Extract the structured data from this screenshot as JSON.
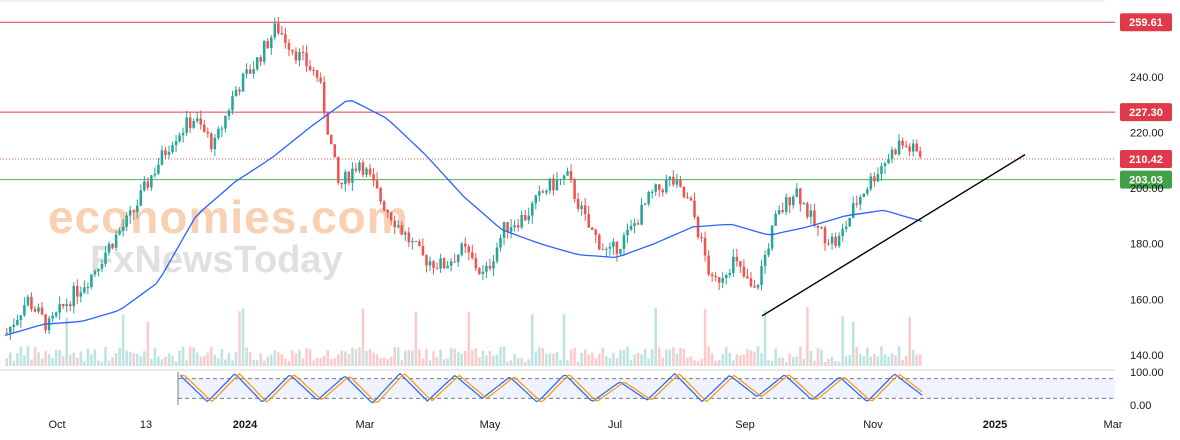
{
  "colors": {
    "up": "#26a69a",
    "down": "#ef5350",
    "ma": "#2962ff",
    "resistance": "#e03a4a",
    "support": "#4caf50",
    "current_dotted": "#ef5350",
    "trendline": "#000000",
    "stoch_k": "#2962ff",
    "stoch_d": "#ff9800"
  },
  "watermark": {
    "line1": "economies.com",
    "line2": "FxNewsToday"
  },
  "chart_data": {
    "type": "candlestick",
    "price_axis": {
      "range": [
        136,
        264
      ],
      "ticks": [
        140,
        160,
        180,
        200,
        220,
        240
      ]
    },
    "time_axis": {
      "labels": [
        {
          "text": "Oct",
          "bold": false
        },
        {
          "text": "13",
          "bold": false
        },
        {
          "text": "2024",
          "bold": true
        },
        {
          "text": "Mar",
          "bold": false
        },
        {
          "text": "May",
          "bold": false
        },
        {
          "text": "Jul",
          "bold": false
        },
        {
          "text": "Sep",
          "bold": false
        },
        {
          "text": "Nov",
          "bold": false
        },
        {
          "text": "2025",
          "bold": true
        },
        {
          "text": "Mar",
          "bold": false
        }
      ]
    },
    "levels": [
      {
        "value": 259.61,
        "label": "259.61",
        "kind": "resistance"
      },
      {
        "value": 227.3,
        "label": "227.30",
        "kind": "resistance"
      },
      {
        "value": 210.42,
        "label": "210.42",
        "kind": "current"
      },
      {
        "value": 203.03,
        "label": "203.03",
        "kind": "support"
      }
    ],
    "trendline": {
      "from": 154,
      "to": 212
    },
    "price_path": [
      148,
      160,
      150,
      160,
      168,
      180,
      190,
      205,
      218,
      225,
      215,
      235,
      245,
      258,
      248,
      240,
      200,
      210,
      196,
      185,
      175,
      172,
      178,
      168,
      186,
      190,
      200,
      204,
      186,
      176,
      184,
      197,
      203,
      193,
      165,
      174,
      162,
      188,
      200,
      185,
      180,
      196,
      207,
      216,
      212
    ],
    "ma_path": [
      147,
      151,
      152,
      156,
      166,
      190,
      202,
      211,
      222,
      232,
      225,
      212,
      197,
      185,
      180,
      176,
      175,
      180,
      186,
      187,
      183,
      186,
      190,
      192,
      188
    ],
    "stochastic": {
      "range": [
        0,
        100
      ],
      "ticks": [
        100.0,
        0.0
      ],
      "bands": [
        80,
        20
      ],
      "k_path": [
        90,
        10,
        95,
        8,
        92,
        15,
        88,
        5,
        96,
        12,
        90,
        20,
        85,
        8,
        93,
        10,
        70,
        15,
        95,
        10,
        90,
        25,
        92,
        15,
        85,
        10,
        94,
        30
      ]
    }
  }
}
